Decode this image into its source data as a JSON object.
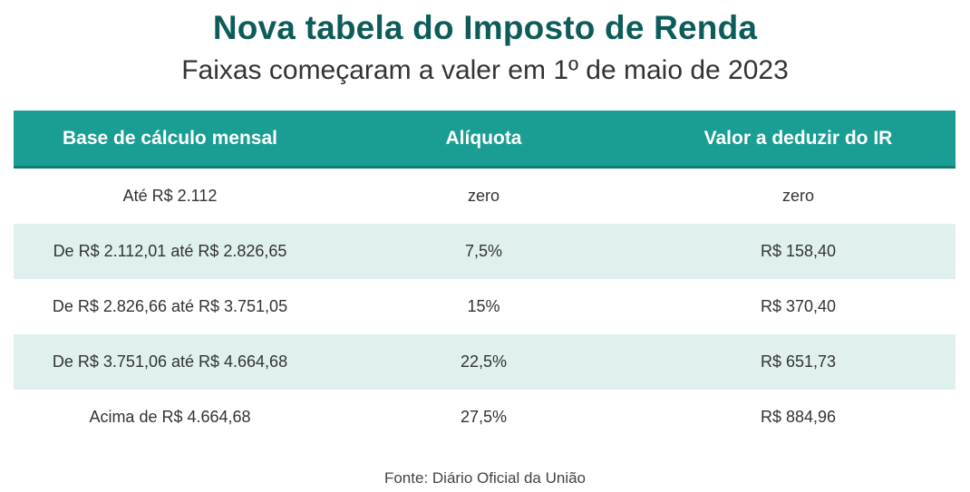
{
  "title": "Nova tabela do Imposto de Renda",
  "subtitle": "Faixas começaram a valer em 1º de maio de 2023",
  "table": {
    "headers": [
      "Base de cálculo mensal",
      "Alíquota",
      "Valor a deduzir do IR"
    ],
    "rows": [
      [
        "Até R$ 2.112",
        "zero",
        "zero"
      ],
      [
        "De R$ 2.112,01 até R$ 2.826,65",
        "7,5%",
        "R$ 158,40"
      ],
      [
        "De R$ 2.826,66 até R$ 3.751,05",
        "15%",
        "R$ 370,40"
      ],
      [
        "De R$ 3.751,06 até R$ 4.664,68",
        "22,5%",
        "R$ 651,73"
      ],
      [
        "Acima de R$ 4.664,68",
        "27,5%",
        "R$ 884,96"
      ]
    ]
  },
  "source": "Fonte: Diário Oficial da União",
  "colors": {
    "title": "#0d5c59",
    "header_bg": "#1a9e93",
    "alt_row_bg": "#dff0ef"
  }
}
